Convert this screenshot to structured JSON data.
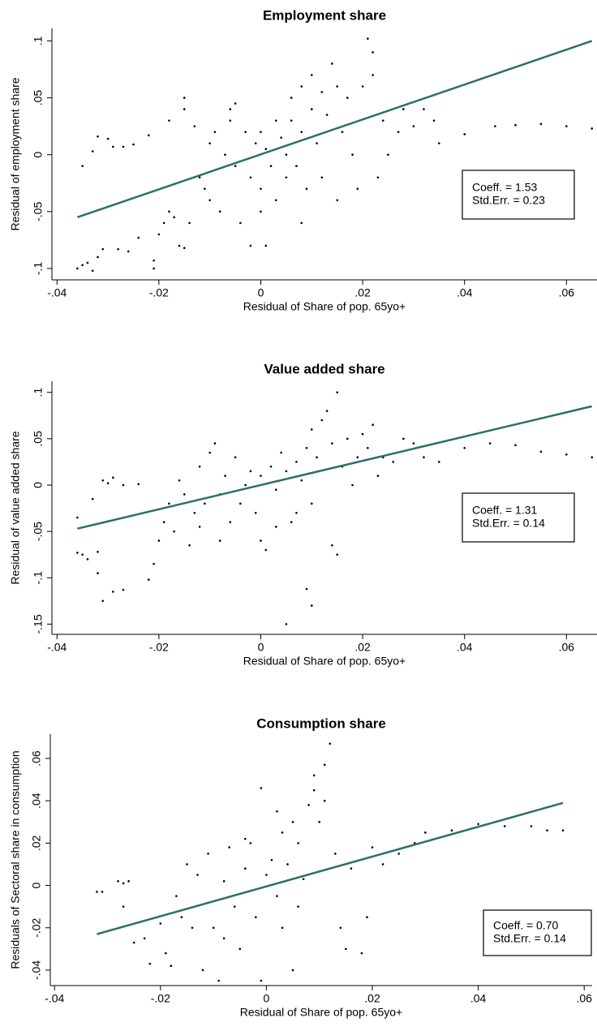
{
  "chart_data": [
    {
      "type": "scatter",
      "title": "Employment share",
      "x_label": "Residual of Share of pop. 65yo+",
      "y_label": "Residual of employment share",
      "xlim": [
        -0.041,
        0.066
      ],
      "ylim": [
        -0.11,
        0.111
      ],
      "xticks": [
        {
          "value": -0.04,
          "label": "-.04"
        },
        {
          "value": -0.02,
          "label": "-.02"
        },
        0,
        {
          "value": 0.02,
          "label": ".02"
        },
        {
          "value": 0.04,
          "label": ".04"
        },
        {
          "value": 0.06,
          "label": ".06"
        }
      ],
      "yticks": [
        {
          "value": -0.1,
          "label": "-.1"
        },
        {
          "value": -0.05,
          "label": "-.05"
        },
        0,
        {
          "value": 0.05,
          "label": ".05"
        },
        {
          "value": 0.1,
          "label": ".1"
        }
      ],
      "color": "#000000",
      "x": [
        -0.036,
        -0.035,
        -0.034,
        -0.032,
        -0.033,
        -0.031,
        -0.028,
        -0.026,
        -0.035,
        -0.033,
        -0.032,
        -0.03,
        -0.029,
        -0.027,
        -0.025,
        -0.022,
        -0.024,
        -0.021,
        -0.021,
        -0.02,
        -0.019,
        -0.018,
        -0.017,
        -0.016,
        -0.015,
        -0.014,
        -0.015,
        -0.015,
        -0.013,
        -0.012,
        -0.011,
        -0.01,
        -0.01,
        -0.009,
        -0.008,
        -0.007,
        -0.006,
        -0.005,
        -0.005,
        -0.004,
        -0.003,
        -0.002,
        -0.001,
        0,
        0,
        0.001,
        0.001,
        0.002,
        0.003,
        0.003,
        0.004,
        0.005,
        0.005,
        0.006,
        0.006,
        0.007,
        0.008,
        0.008,
        0.009,
        0.01,
        0.01,
        0.011,
        0.012,
        0.012,
        0.013,
        0.014,
        0.015,
        0.015,
        0.016,
        0.017,
        0.018,
        0.019,
        0.02,
        0.021,
        0.022,
        0.022,
        0.023,
        0.024,
        0.025,
        0.027,
        0.028,
        0.03,
        0.032,
        0.034,
        0.035,
        0.04,
        0.046,
        0.05,
        0.055,
        0.06,
        0.065,
        -0.002,
        -0.018,
        0.008,
        -0.006,
        0
      ],
      "y": [
        -0.1,
        -0.097,
        -0.095,
        -0.09,
        -0.102,
        -0.083,
        -0.083,
        -0.085,
        -0.01,
        0.003,
        0.016,
        0.014,
        0.007,
        0.007,
        0.009,
        0.017,
        -0.073,
        -0.1,
        -0.093,
        -0.07,
        -0.06,
        -0.05,
        -0.055,
        -0.08,
        -0.082,
        -0.06,
        0.05,
        0.04,
        0.025,
        -0.02,
        -0.03,
        -0.04,
        0.01,
        0.02,
        -0.05,
        0,
        0.03,
        -0.01,
        0.045,
        -0.06,
        0.02,
        -0.02,
        0.01,
        -0.03,
        0.02,
        -0.08,
        0.005,
        -0.01,
        0.03,
        -0.04,
        0.015,
        -0.02,
        0,
        0.03,
        0.05,
        -0.01,
        0.02,
        0.06,
        -0.03,
        0.04,
        0.07,
        0.01,
        0.055,
        -0.02,
        0.035,
        0.08,
        0.06,
        -0.04,
        0.02,
        0.05,
        0,
        -0.03,
        0.06,
        0.102,
        0.07,
        0.09,
        -0.02,
        0.03,
        0,
        0.02,
        0.04,
        0.025,
        0.04,
        0.03,
        0.01,
        0.018,
        0.025,
        0.026,
        0.027,
        0.025,
        0.023,
        -0.08,
        0.03,
        -0.06,
        0.04,
        -0.05
      ],
      "fit_line": {
        "color": "#2e6e6a",
        "x": [
          -0.036,
          0.065
        ],
        "y": [
          -0.055,
          0.1
        ]
      },
      "annotation": [
        "Coeff. = 1.53",
        "Std.Err. = 0.23"
      ]
    },
    {
      "type": "scatter",
      "title": "Value added share",
      "x_label": "Residual of Share of pop. 65yo+",
      "y_label": "Residual of value added share",
      "xlim": [
        -0.041,
        0.066
      ],
      "ylim": [
        -0.161,
        0.112
      ],
      "xticks": [
        {
          "value": -0.04,
          "label": "-.04"
        },
        {
          "value": -0.02,
          "label": "-.02"
        },
        0,
        {
          "value": 0.02,
          "label": ".02"
        },
        {
          "value": 0.04,
          "label": ".04"
        },
        {
          "value": 0.06,
          "label": ".06"
        }
      ],
      "yticks": [
        {
          "value": -0.15,
          "label": "-.15"
        },
        {
          "value": -0.1,
          "label": "-.1"
        },
        {
          "value": -0.05,
          "label": "-.05"
        },
        0,
        {
          "value": 0.05,
          "label": ".05"
        },
        {
          "value": 0.1,
          "label": ".1"
        }
      ],
      "color": "#000000",
      "x": [
        -0.036,
        -0.036,
        -0.035,
        -0.034,
        -0.033,
        -0.032,
        -0.032,
        -0.031,
        -0.029,
        -0.027,
        -0.031,
        -0.03,
        -0.029,
        -0.027,
        -0.024,
        -0.022,
        -0.021,
        -0.02,
        -0.019,
        -0.018,
        -0.017,
        -0.016,
        -0.015,
        -0.014,
        -0.013,
        -0.012,
        -0.011,
        -0.01,
        -0.009,
        -0.008,
        -0.007,
        -0.006,
        -0.005,
        -0.004,
        -0.003,
        -0.002,
        -0.001,
        0,
        0,
        0.001,
        0.002,
        0.003,
        0.004,
        0.005,
        0.005,
        0.006,
        0.007,
        0.008,
        0.009,
        0.01,
        0.01,
        0.011,
        0.012,
        0.013,
        0.014,
        0.014,
        0.015,
        0.015,
        0.016,
        0.017,
        0.018,
        0.019,
        0.02,
        0.021,
        0.022,
        0.023,
        0.024,
        0.026,
        0.028,
        0.03,
        0.032,
        0.035,
        0.04,
        0.045,
        0.05,
        0.055,
        0.06,
        0.065,
        0.009,
        0.01,
        -0.008,
        0.003,
        -0.012,
        0.007
      ],
      "y": [
        -0.035,
        -0.073,
        -0.075,
        -0.08,
        -0.015,
        -0.072,
        -0.095,
        -0.125,
        -0.115,
        -0.113,
        0.005,
        0.002,
        0.008,
        0,
        0.001,
        -0.102,
        -0.085,
        -0.06,
        -0.04,
        -0.02,
        -0.05,
        0.005,
        -0.01,
        -0.065,
        -0.03,
        0.02,
        -0.02,
        0.035,
        0.045,
        -0.01,
        0.01,
        -0.04,
        0.03,
        -0.02,
        0,
        0.015,
        -0.03,
        0.01,
        -0.06,
        -0.07,
        0.02,
        -0.005,
        0.035,
        0.015,
        -0.15,
        -0.04,
        0.025,
        0.005,
        0.04,
        -0.02,
        0.06,
        0.03,
        0.07,
        0.08,
        0.045,
        -0.065,
        0.1,
        -0.075,
        0.02,
        0.05,
        0,
        0.03,
        0.055,
        0.04,
        0.065,
        0.01,
        0.03,
        0.025,
        0.05,
        0.045,
        0.03,
        0.025,
        0.04,
        0.045,
        0.043,
        0.036,
        0.033,
        0.03,
        -0.112,
        -0.13,
        -0.06,
        -0.045,
        -0.045,
        -0.03
      ],
      "fit_line": {
        "color": "#2e6e6a",
        "x": [
          -0.036,
          0.065
        ],
        "y": [
          -0.047,
          0.085
        ]
      },
      "annotation": [
        "Coeff. = 1.31",
        "Std.Err. = 0.14"
      ]
    },
    {
      "type": "scatter",
      "title": "Consumption share",
      "x_label": "Residual of Share of pop. 65yo+",
      "y_label": "Residuals of Sectoral share in consumption",
      "xlim": [
        -0.0408,
        0.0615
      ],
      "ylim": [
        -0.0473,
        0.0715
      ],
      "xticks": [
        {
          "value": -0.04,
          "label": "-.04"
        },
        {
          "value": -0.02,
          "label": "-.02"
        },
        0,
        {
          "value": 0.02,
          "label": ".02"
        },
        {
          "value": 0.04,
          "label": ".04"
        },
        {
          "value": 0.06,
          "label": ".06"
        }
      ],
      "yticks": [
        {
          "value": -0.04,
          "label": "-.04"
        },
        {
          "value": -0.02,
          "label": "-.02"
        },
        0,
        {
          "value": 0.02,
          "label": ".02"
        },
        {
          "value": 0.04,
          "label": ".04"
        },
        {
          "value": 0.06,
          "label": ".06"
        }
      ],
      "color": "#000000",
      "x": [
        -0.032,
        -0.031,
        -0.028,
        -0.027,
        -0.026,
        -0.027,
        -0.025,
        -0.023,
        -0.022,
        -0.02,
        -0.019,
        -0.018,
        -0.017,
        -0.016,
        -0.015,
        -0.014,
        -0.013,
        -0.012,
        -0.011,
        -0.01,
        -0.009,
        -0.008,
        -0.007,
        -0.006,
        -0.005,
        -0.004,
        -0.003,
        -0.002,
        -0.001,
        -0.001,
        0,
        0.001,
        0.002,
        0.003,
        0.004,
        0.005,
        0.005,
        0.006,
        0.007,
        0.008,
        0.009,
        0.009,
        0.01,
        0.011,
        0.011,
        0.012,
        0.013,
        0.014,
        0.015,
        0.016,
        0.018,
        0.019,
        0.02,
        0.022,
        0.025,
        0.028,
        0.03,
        0.035,
        0.04,
        0.045,
        0.05,
        0.053,
        0.056,
        0.003,
        -0.008,
        0.006,
        -0.004,
        0.002
      ],
      "y": [
        -0.003,
        -0.003,
        0.002,
        0.001,
        0.002,
        -0.01,
        -0.027,
        -0.025,
        -0.037,
        -0.018,
        -0.032,
        -0.038,
        -0.005,
        -0.015,
        0.01,
        -0.02,
        0.005,
        -0.04,
        0.015,
        -0.02,
        -0.045,
        0.002,
        0.018,
        -0.01,
        -0.03,
        0.008,
        0.02,
        -0.015,
        0.046,
        -0.045,
        0.005,
        0.012,
        -0.005,
        0.025,
        0.01,
        -0.04,
        0.03,
        0.02,
        0.003,
        0.038,
        0.052,
        0.045,
        0.03,
        0.04,
        0.057,
        0.067,
        0.015,
        -0.02,
        -0.03,
        0.008,
        -0.032,
        -0.015,
        0.018,
        0.01,
        0.015,
        0.02,
        0.025,
        0.026,
        0.029,
        0.028,
        0.028,
        0.026,
        0.026,
        -0.02,
        -0.025,
        -0.01,
        0.022,
        0.035
      ],
      "fit_line": {
        "color": "#2e6e6a",
        "x": [
          -0.032,
          0.056
        ],
        "y": [
          -0.023,
          0.039
        ]
      },
      "annotation": [
        "Coeff. = 0.70",
        "Std.Err. = 0.14"
      ]
    }
  ]
}
